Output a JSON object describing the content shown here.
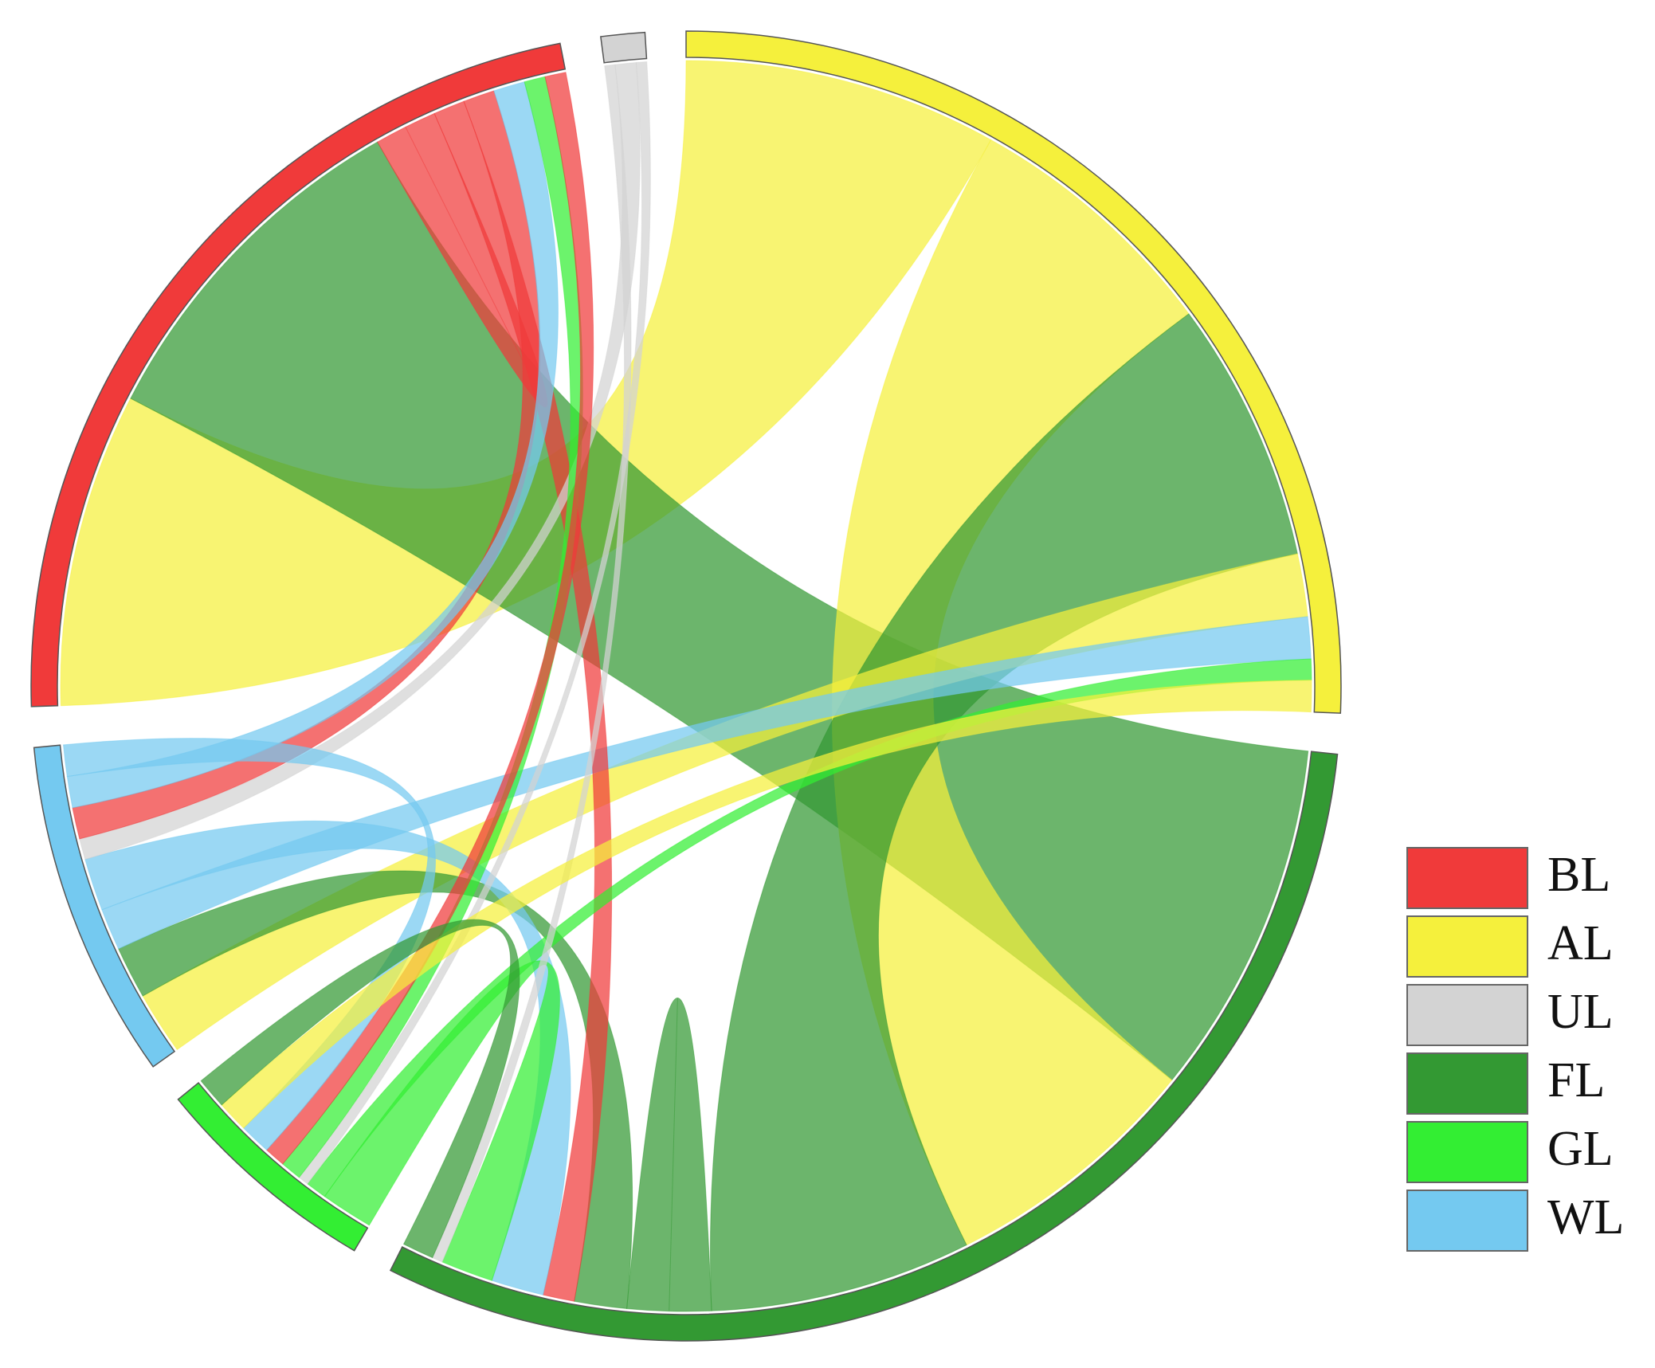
{
  "chart_data": {
    "type": "chord",
    "groups": [
      {
        "name": "BL",
        "color": "#f03a3a"
      },
      {
        "name": "AL",
        "color": "#f5f03c"
      },
      {
        "name": "UL",
        "color": "#d3d3d3"
      },
      {
        "name": "FL",
        "color": "#339933"
      },
      {
        "name": "GL",
        "color": "#33ee33"
      },
      {
        "name": "WL",
        "color": "#74c9f0"
      }
    ],
    "circle_order": [
      "AL",
      "FL",
      "GL",
      "WL",
      "BL",
      "UL"
    ],
    "flows": [
      {
        "from": "AL",
        "to": "BL",
        "value": 30
      },
      {
        "from": "FL",
        "to": "BL",
        "value": 34
      },
      {
        "from": "AL",
        "to": "FL",
        "value": 25
      },
      {
        "from": "FL",
        "to": "AL",
        "value": 25
      },
      {
        "from": "FL",
        "to": "FL",
        "value": 4
      },
      {
        "from": "AL",
        "to": "WL",
        "value": 6
      },
      {
        "from": "FL",
        "to": "WL",
        "value": 5
      },
      {
        "from": "WL",
        "to": "AL",
        "value": 4
      },
      {
        "from": "BL",
        "to": "BL",
        "value": 3
      },
      {
        "from": "BL",
        "to": "FL",
        "value": 3
      },
      {
        "from": "WL",
        "to": "FL",
        "value": 5
      },
      {
        "from": "GL",
        "to": "FL",
        "value": 5
      },
      {
        "from": "GL",
        "to": "AL",
        "value": 2
      },
      {
        "from": "UL",
        "to": "FL",
        "value": 1
      },
      {
        "from": "UL",
        "to": "WL",
        "value": 2
      },
      {
        "from": "UL",
        "to": "GL",
        "value": 1
      },
      {
        "from": "BL",
        "to": "WL",
        "value": 3
      },
      {
        "from": "WL",
        "to": "BL",
        "value": 3
      },
      {
        "from": "GL",
        "to": "BL",
        "value": 2
      },
      {
        "from": "BL",
        "to": "GL",
        "value": 2
      },
      {
        "from": "WL",
        "to": "GL",
        "value": 3
      },
      {
        "from": "AL",
        "to": "GL",
        "value": 3
      },
      {
        "from": "FL",
        "to": "GL",
        "value": 3
      }
    ],
    "legend": "right"
  }
}
